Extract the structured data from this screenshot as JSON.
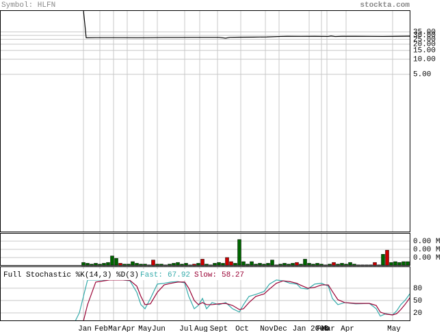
{
  "header": {
    "symbol": "Symbol: HLFN",
    "source": "stockta.com"
  },
  "chart_data": [
    {
      "type": "line",
      "log_scale": true,
      "grid": true,
      "x": [
        61,
        63,
        70,
        80,
        90,
        100,
        110,
        120,
        130,
        140,
        150,
        160,
        165,
        168,
        175,
        185,
        195,
        205,
        210,
        220,
        230,
        240,
        242,
        245,
        250,
        260,
        270,
        280,
        290,
        300
      ],
      "series": [
        {
          "color": "#000000",
          "values": [
            95,
            26.8,
            27,
            27,
            27,
            26.9,
            27,
            27.2,
            27.2,
            27.3,
            27.3,
            27.3,
            26.3,
            27.3,
            27.5,
            27.6,
            27.8,
            28.4,
            28.6,
            28.5,
            28.6,
            28.4,
            29.0,
            28.3,
            28.6,
            28.6,
            28.5,
            28.4,
            28.6,
            28.8
          ]
        }
      ],
      "xlim": [
        0,
        300
      ],
      "ylim": [
        0.0035,
        95
      ],
      "yticks": [
        {
          "value": 35,
          "label": "35.00"
        },
        {
          "value": 30,
          "label": "30.00"
        },
        {
          "value": 25,
          "label": "25.00"
        },
        {
          "value": 20,
          "label": "20.00"
        },
        {
          "value": 15,
          "label": "15.00"
        },
        {
          "value": 10,
          "label": "10.00"
        },
        {
          "value": 5,
          "label": "5.00"
        }
      ]
    },
    {
      "type": "bar",
      "grid": true,
      "x": [
        61,
        64,
        67,
        70,
        73,
        76,
        79,
        82,
        85,
        88,
        91,
        94,
        97,
        100,
        103,
        106,
        109,
        112,
        115,
        118,
        121,
        124,
        127,
        130,
        133,
        136,
        139,
        142,
        145,
        148,
        151,
        154,
        157,
        160,
        163,
        166,
        169,
        172,
        175,
        178,
        181,
        184,
        187,
        190,
        193,
        196,
        199,
        202,
        205,
        208,
        211,
        214,
        217,
        220,
        223,
        226,
        229,
        232,
        235,
        238,
        241,
        244,
        247,
        250,
        253,
        256,
        259,
        262,
        265,
        268,
        271,
        274,
        277,
        280,
        283,
        286,
        289,
        292,
        295,
        298
      ],
      "values": [
        0.0004,
        0.0003,
        0.0002,
        0.0003,
        0.0002,
        0.0003,
        0.0004,
        0.0012,
        0.0009,
        0.0003,
        0.0002,
        0.0002,
        0.0005,
        0.0003,
        0.0002,
        0.0002,
        0.0001,
        0.0007,
        0.0002,
        0.0002,
        0.0001,
        0.0002,
        0.0003,
        0.0004,
        0.0002,
        0.0003,
        0.0001,
        0.0002,
        0.0003,
        0.0008,
        0.0002,
        0.0001,
        0.0003,
        0.0004,
        0.0003,
        0.001,
        0.0005,
        0.0003,
        0.0032,
        0.0005,
        0.0002,
        0.0005,
        0.0002,
        0.0003,
        0.0002,
        0.0003,
        0.0007,
        0.0001,
        0.0002,
        0.0003,
        0.0002,
        0.0003,
        0.0004,
        0.0002,
        0.0008,
        0.0003,
        0.0002,
        0.0003,
        0.0002,
        0.0001,
        0.0002,
        0.0004,
        0.0002,
        0.0003,
        0.0002,
        0.0004,
        0.0002,
        0.0001,
        0.0001,
        0.0001,
        0.0001,
        0.0004,
        0.0001,
        0.0014,
        0.0019,
        0.0004,
        0.0005,
        0.0004,
        0.0005,
        0.0005
      ],
      "colors": [
        "#006600",
        "#006600",
        "#006600",
        "#006600",
        "#006600",
        "#006600",
        "#006600",
        "#006600",
        "#006600",
        "#cc0000",
        "#006600",
        "#006600",
        "#006600",
        "#006600",
        "#006600",
        "#006600",
        "#006600",
        "#cc0000",
        "#006600",
        "#006600",
        "#006600",
        "#006600",
        "#006600",
        "#006600",
        "#006600",
        "#006600",
        "#006600",
        "#cc0000",
        "#006600",
        "#cc0000",
        "#006600",
        "#006600",
        "#006600",
        "#006600",
        "#006600",
        "#cc0000",
        "#cc0000",
        "#006600",
        "#006600",
        "#006600",
        "#006600",
        "#006600",
        "#006600",
        "#006600",
        "#006600",
        "#006600",
        "#006600",
        "#006600",
        "#006600",
        "#006600",
        "#006600",
        "#006600",
        "#cc0000",
        "#006600",
        "#006600",
        "#006600",
        "#006600",
        "#006600",
        "#006600",
        "#006600",
        "#006600",
        "#cc0000",
        "#006600",
        "#006600",
        "#006600",
        "#006600",
        "#006600",
        "#006600",
        "#006600",
        "#006600",
        "#006600",
        "#cc0000",
        "#006600",
        "#006600",
        "#cc0000",
        "#006600",
        "#006600",
        "#006600",
        "#006600",
        "#006600"
      ],
      "xlim": [
        0,
        300
      ],
      "ylim": [
        0,
        0.004
      ],
      "yticks": [
        {
          "value": 0.003,
          "label": "0.00 M"
        },
        {
          "value": 0.002,
          "label": "0.00 M"
        },
        {
          "value": 0.001,
          "label": "0.00 M"
        }
      ]
    },
    {
      "type": "line",
      "grid": true,
      "title": "Full Stochastic %K(14,3) %D(3)",
      "x": [
        55,
        58,
        61,
        64,
        70,
        80,
        90,
        95,
        100,
        103,
        106,
        110,
        115,
        120,
        125,
        130,
        135,
        138,
        142,
        145,
        148,
        151,
        155,
        160,
        165,
        170,
        175,
        178,
        182,
        187,
        193,
        197,
        202,
        207,
        212,
        217,
        220,
        225,
        230,
        235,
        240,
        243,
        247,
        252,
        260,
        270,
        275,
        278,
        282,
        287,
        290,
        293,
        296,
        300
      ],
      "series": [
        {
          "name": "Fast:",
          "color": "#33aaaa",
          "values": [
            0,
            20,
            60,
            100,
            100,
            100,
            100,
            98,
            70,
            40,
            30,
            55,
            90,
            92,
            95,
            96,
            93,
            60,
            30,
            38,
            55,
            30,
            45,
            40,
            45,
            30,
            22,
            40,
            60,
            65,
            72,
            90,
            100,
            98,
            92,
            90,
            80,
            78,
            90,
            92,
            85,
            55,
            40,
            45,
            42,
            43,
            30,
            12,
            18,
            15,
            25,
            40,
            50,
            67.92
          ]
        },
        {
          "name": "Slow:",
          "color": "#990033",
          "values": [
            null,
            null,
            0,
            40,
            95,
            100,
            100,
            99,
            85,
            60,
            40,
            42,
            70,
            88,
            92,
            95,
            95,
            80,
            50,
            40,
            45,
            40,
            40,
            42,
            43,
            38,
            28,
            30,
            45,
            60,
            66,
            78,
            92,
            98,
            96,
            92,
            87,
            80,
            82,
            88,
            88,
            72,
            52,
            45,
            43,
            43,
            38,
            22,
            17,
            15,
            18,
            28,
            40,
            58.27
          ]
        }
      ],
      "xlim": [
        0,
        300
      ],
      "ylim": [
        0,
        133
      ],
      "yticks": [
        80,
        50,
        20
      ],
      "xticks": [
        {
          "value": 61,
          "label": "Jan"
        },
        {
          "value": 73,
          "label": "Feb"
        },
        {
          "value": 83,
          "label": "Mar"
        },
        {
          "value": 93,
          "label": "Apr"
        },
        {
          "value": 105,
          "label": "May"
        },
        {
          "value": 115,
          "label": "Jun"
        },
        {
          "value": 135,
          "label": "Jul"
        },
        {
          "value": 146,
          "label": "Aug"
        },
        {
          "value": 159,
          "label": "Sept"
        },
        {
          "value": 176,
          "label": "Oct"
        },
        {
          "value": 194,
          "label": "Nov"
        },
        {
          "value": 204,
          "label": "Dec"
        },
        {
          "value": 226,
          "label": "Jan 2008"
        },
        {
          "value": 235,
          "label": "Feb"
        },
        {
          "value": 239,
          "label": "Mar"
        },
        {
          "value": 253,
          "label": "Apr"
        },
        {
          "value": 287,
          "label": "May"
        }
      ]
    }
  ]
}
